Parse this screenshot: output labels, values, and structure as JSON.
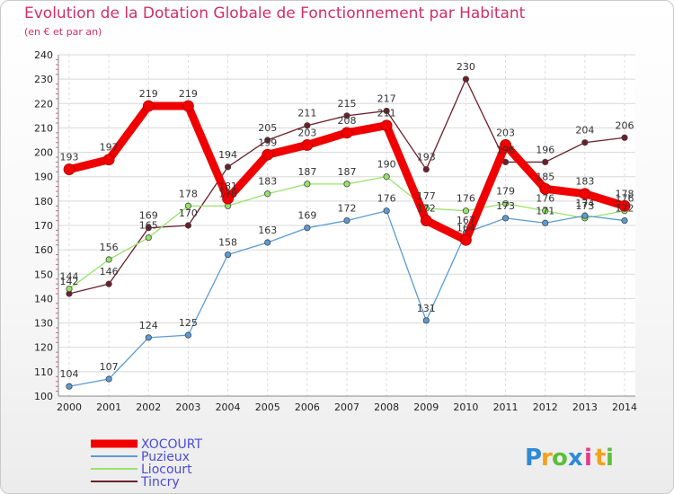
{
  "header": {
    "title": "Evolution de la Dotation Globale de Fonctionnement par Habitant",
    "subtitle": "(en € et par an)"
  },
  "chart_data": {
    "type": "line",
    "x": [
      "2000",
      "2001",
      "2002",
      "2003",
      "2004",
      "2005",
      "2006",
      "2007",
      "2008",
      "2009",
      "2010",
      "2011",
      "2012",
      "2013",
      "2014"
    ],
    "ylim": [
      100,
      240
    ],
    "yticks": [
      100,
      110,
      120,
      130,
      140,
      150,
      160,
      170,
      180,
      190,
      200,
      210,
      220,
      230,
      240
    ],
    "grid": true,
    "legend_position": "bottom-left",
    "series": [
      {
        "name": "Tincry",
        "color": "#6b1f2a",
        "width": 1.3,
        "values": [
          142,
          146,
          169,
          170,
          194,
          205,
          211,
          215,
          217,
          193,
          230,
          196,
          196,
          204,
          206
        ]
      },
      {
        "name": "Liocourt",
        "color": "#99e26a",
        "width": 1.3,
        "values": [
          144,
          156,
          165,
          178,
          178,
          183,
          187,
          187,
          190,
          177,
          176,
          179,
          176,
          173,
          176
        ]
      },
      {
        "name": "Puzieux",
        "color": "#5b9bd5",
        "width": 1.3,
        "values": [
          104,
          107,
          124,
          125,
          158,
          163,
          169,
          172,
          176,
          131,
          167,
          173,
          171,
          174,
          172
        ]
      },
      {
        "name": "XOCOURT",
        "color": "#f00000",
        "width": 9,
        "values": [
          193,
          197,
          219,
          219,
          181,
          199,
          203,
          208,
          211,
          172,
          164,
          203,
          185,
          183,
          178
        ]
      }
    ],
    "legend": [
      {
        "name": "XOCOURT",
        "color": "#f00000"
      },
      {
        "name": "Puzieux",
        "color": "#5b9bd5"
      },
      {
        "name": "Liocourt",
        "color": "#99e26a"
      },
      {
        "name": "Tincry",
        "color": "#6b1f2a"
      }
    ]
  },
  "brand": {
    "letters": [
      "P",
      "r",
      "o",
      "x",
      "i",
      "t",
      "i"
    ],
    "colors": [
      "#2e8ad6",
      "#f2a21b",
      "#5cbf3a",
      "#2e8ad6",
      "#e6398a",
      "#f2a21b",
      "#5cbf3a"
    ]
  }
}
